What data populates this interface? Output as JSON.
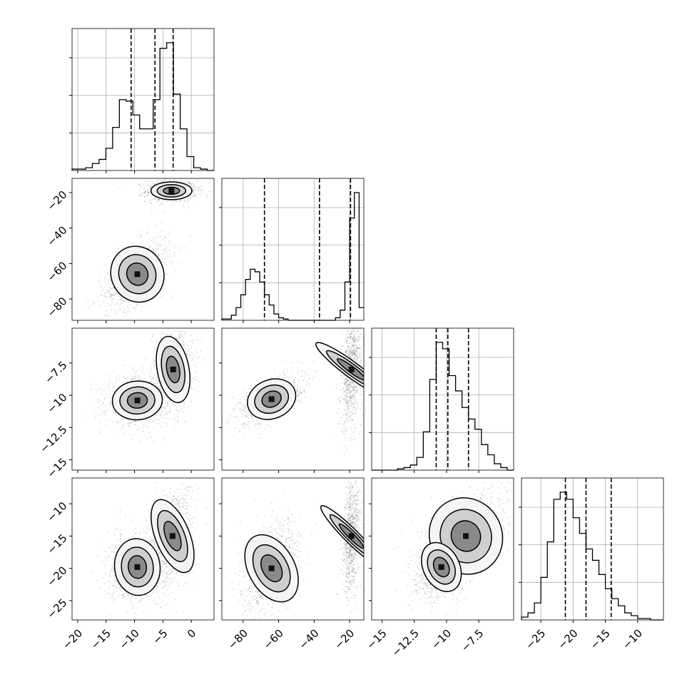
{
  "chart_data": {
    "type": "corner",
    "title": "",
    "n_params": 4,
    "params": [
      {
        "range": [
          -21,
          4
        ],
        "ticks": [
          -20,
          -15,
          -10,
          -5,
          0
        ],
        "quantiles": [
          -10.6,
          -6.4,
          -3.2
        ],
        "hist": {
          "lo": -21,
          "hi": 4,
          "counts": [
            0.01,
            0.01,
            0.02,
            0.05,
            0.08,
            0.16,
            0.31,
            0.51,
            0.5,
            0.4,
            0.3,
            0.3,
            0.51,
            0.88,
            0.92,
            0.55,
            0.3,
            0.1,
            0.02,
            0.01,
            0.0
          ]
        }
      },
      {
        "range": [
          -92,
          -12
        ],
        "ticks": [
          -80,
          -60,
          -40,
          -20
        ],
        "quantiles": [
          -68,
          -37,
          -19.5
        ],
        "hist": {
          "lo": -92,
          "hi": -12,
          "counts": [
            0.01,
            0.01,
            0.04,
            0.1,
            0.2,
            0.32,
            0.4,
            0.38,
            0.3,
            0.2,
            0.12,
            0.05,
            0.02,
            0.01,
            0,
            0,
            0,
            0,
            0,
            0,
            0,
            0,
            0,
            0,
            0.02,
            0.08,
            0.3,
            0.8,
            1.0,
            0.1
          ]
        }
      },
      {
        "range": [
          -15.8,
          -4.8
        ],
        "ticks": [
          -15.0,
          -12.5,
          -10.0,
          -7.5
        ],
        "quantiles": [
          -10.8,
          -9.9,
          -8.3
        ],
        "hist": {
          "lo": -15.8,
          "hi": -4.8,
          "counts": [
            0,
            0,
            0,
            0,
            0.01,
            0.02,
            0.04,
            0.1,
            0.3,
            0.71,
            1.0,
            0.95,
            0.74,
            0.62,
            0.49,
            0.4,
            0.32,
            0.2,
            0.12,
            0.05,
            0.02,
            0
          ]
        }
      },
      {
        "range": [
          -28,
          -6
        ],
        "ticks": [
          -25,
          -20,
          -15,
          -10
        ],
        "quantiles": [
          -21.2,
          -18.0,
          -14.1
        ],
        "hist": {
          "lo": -28,
          "hi": -6,
          "counts": [
            0.02,
            0.05,
            0.12,
            0.3,
            0.55,
            0.85,
            0.9,
            0.85,
            0.72,
            0.61,
            0.5,
            0.42,
            0.32,
            0.22,
            0.15,
            0.1,
            0.05,
            0.03,
            0.01,
            0.01,
            0,
            0
          ]
        }
      }
    ],
    "panels": [
      {
        "row": 1,
        "col": 0,
        "modes": [
          {
            "mx": -3.5,
            "my": -19,
            "sx": 1.8,
            "sy": 2.5,
            "r": 0
          },
          {
            "mx": -9.5,
            "my": -66,
            "sx": 2.3,
            "sy": 8,
            "r": 0.55
          }
        ]
      },
      {
        "row": 2,
        "col": 0,
        "modes": [
          {
            "mx": -3.2,
            "my": -8,
            "sx": 1.4,
            "sy": 1.3,
            "r": 0.1
          },
          {
            "mx": -9.5,
            "my": -10.4,
            "sx": 2.2,
            "sy": 0.75,
            "r": 0.1
          }
        ]
      },
      {
        "row": 2,
        "col": 1,
        "modes": [
          {
            "mx": -19,
            "my": -8,
            "sx": 2.2,
            "sy": 1.7,
            "r": 0.3
          },
          {
            "mx": -64,
            "my": -10.3,
            "sx": 7,
            "sy": 0.75,
            "r": 0.6
          }
        ]
      },
      {
        "row": 3,
        "col": 0,
        "modes": [
          {
            "mx": -3.3,
            "my": -15,
            "sx": 1.5,
            "sy": 3,
            "r": 0.2
          },
          {
            "mx": -9.5,
            "my": -19.8,
            "sx": 2,
            "sy": 2.2,
            "r": 0.1
          }
        ]
      },
      {
        "row": 3,
        "col": 1,
        "modes": [
          {
            "mx": -19,
            "my": -15,
            "sx": 2,
            "sy": 3.3,
            "r": 0.2
          },
          {
            "mx": -64,
            "my": -20,
            "sx": 6.5,
            "sy": 2.8,
            "r": 0.4
          }
        ]
      },
      {
        "row": 3,
        "col": 2,
        "modes": [
          {
            "mx": -8.5,
            "my": -15,
            "sx": 1.4,
            "sy": 3,
            "r": 0.55
          },
          {
            "mx": -10.4,
            "my": -19.8,
            "sx": 0.7,
            "sy": 2,
            "r": 0.4
          }
        ]
      }
    ]
  }
}
